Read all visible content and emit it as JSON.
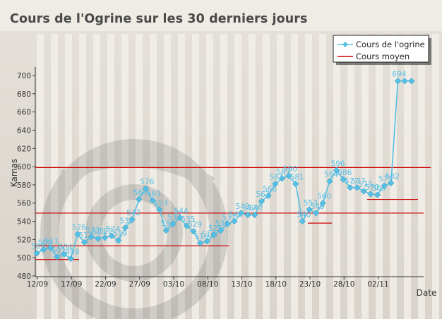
{
  "chart_data": {
    "type": "line",
    "title": "Cours de l'Ogrine sur les 30 derniers jours",
    "xlabel": "Date",
    "ylabel": "Kamas",
    "ylim": [
      480,
      700
    ],
    "yticks": [
      480,
      500,
      520,
      540,
      560,
      580,
      600,
      620,
      640,
      660,
      680,
      700
    ],
    "x_tick_labels": [
      "12/09",
      "17/09",
      "22/09",
      "27/09",
      "03/10",
      "08/10",
      "13/10",
      "18/10",
      "23/10",
      "28/10",
      "02/11"
    ],
    "legend_position": "top-right",
    "grid": false,
    "series": [
      {
        "name": "Cours de l'ogrine",
        "color": "#56bfe3",
        "x": [
          0,
          1,
          2,
          3,
          4,
          5,
          6,
          7,
          8,
          9,
          10,
          11,
          12,
          13,
          14,
          15,
          16,
          17,
          18,
          19,
          20,
          21,
          22,
          23,
          24,
          25,
          26,
          27,
          28,
          29,
          30,
          31,
          32,
          33,
          34,
          35,
          36,
          37,
          38,
          39,
          40,
          41,
          42,
          43,
          44,
          45,
          46,
          47,
          48,
          49,
          50,
          51,
          52,
          53,
          54,
          55
        ],
        "values": [
          505,
          509,
          511,
          501,
          504,
          499,
          526,
          517,
          523,
          521,
          522,
          524,
          519,
          533,
          542,
          564,
          576,
          563,
          553,
          530,
          537,
          544,
          535,
          529,
          516,
          518,
          525,
          530,
          537,
          540,
          549,
          547,
          547,
          562,
          568,
          581,
          587,
          590,
          581,
          540,
          553,
          549,
          560,
          584,
          596,
          586,
          577,
          577,
          573,
          570,
          569,
          579,
          582,
          694,
          694,
          694
        ],
        "labels": [
          "505",
          "509",
          "511",
          "501",
          "504",
          "499",
          "526",
          "517",
          "523",
          "521",
          "522",
          "524",
          "519",
          "533",
          "542",
          "564",
          "576",
          "563",
          "553",
          "530",
          "537",
          "544",
          "535",
          "529",
          "516",
          "518",
          "525",
          "530",
          "537",
          "540",
          "549",
          "547",
          "547",
          "562",
          "568",
          "581",
          "587",
          "590",
          "581",
          "540",
          "553",
          "549",
          "560",
          "584",
          "596",
          "586",
          "577",
          "577",
          "573",
          "570",
          "569",
          "579",
          "582",
          "694",
          "",
          ""
        ]
      },
      {
        "name": "Cours moyen",
        "color": "#cc0000"
      }
    ]
  }
}
